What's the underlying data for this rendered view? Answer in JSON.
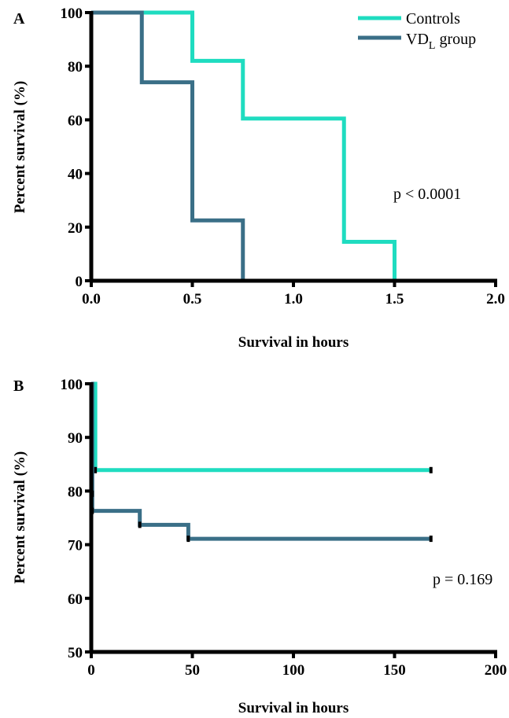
{
  "colors": {
    "controls": "#1fdcc0",
    "vdl": "#3a6f87",
    "axis": "#000000"
  },
  "legend": {
    "items": [
      {
        "name": "Controls",
        "base": "Controls",
        "sub": "",
        "tail": "",
        "color": "#1fdcc0"
      },
      {
        "name": "VDL group",
        "base": "VD",
        "sub": "L",
        "tail": " group",
        "color": "#3a6f87"
      }
    ]
  },
  "chart_data": [
    {
      "type": "line",
      "panel_label": "A",
      "step": true,
      "xlabel": "Survival in hours",
      "ylabel": "Percent survival (%)",
      "xlim": [
        0,
        2.0
      ],
      "ylim": [
        0,
        100
      ],
      "xticks": [
        "0.0",
        "0.5",
        "1.0",
        "1.5",
        "2.0"
      ],
      "yticks": [
        "0",
        "20",
        "40",
        "60",
        "80",
        "100"
      ],
      "annotation": "p < 0.0001",
      "series": [
        {
          "name": "Controls",
          "x": [
            0,
            0.5,
            0.75,
            1.25,
            1.5
          ],
          "y": [
            100,
            82,
            60.5,
            14.5,
            0
          ],
          "censored": []
        },
        {
          "name": "VDL group",
          "x": [
            0,
            0.25,
            0.5,
            0.75
          ],
          "y": [
            100,
            74,
            22.5,
            0
          ],
          "censored": []
        }
      ]
    },
    {
      "type": "line",
      "panel_label": "B",
      "step": true,
      "xlabel": "Survival in hours",
      "ylabel": "Percent survival (%)",
      "xlim": [
        0,
        200
      ],
      "ylim": [
        50,
        100
      ],
      "xticks": [
        "0",
        "50",
        "100",
        "150",
        "200"
      ],
      "yticks": [
        "50",
        "60",
        "70",
        "80",
        "90",
        "100"
      ],
      "annotation": "p = 0.169",
      "series": [
        {
          "name": "Controls",
          "x": [
            0,
            2
          ],
          "y": [
            100,
            83.9
          ],
          "end_x": 168,
          "censored": [
            [
              2,
              83.9
            ],
            [
              168,
              83.9
            ]
          ]
        },
        {
          "name": "VDL group",
          "x": [
            0,
            0.5,
            24,
            48
          ],
          "y": [
            100,
            76.3,
            73.7,
            71.1
          ],
          "end_x": 168,
          "censored": [
            [
              0.5,
              79.5
            ],
            [
              0.5,
              76.3
            ],
            [
              24,
              73.7
            ],
            [
              48,
              71.1
            ],
            [
              168,
              71.1
            ]
          ]
        }
      ]
    }
  ]
}
